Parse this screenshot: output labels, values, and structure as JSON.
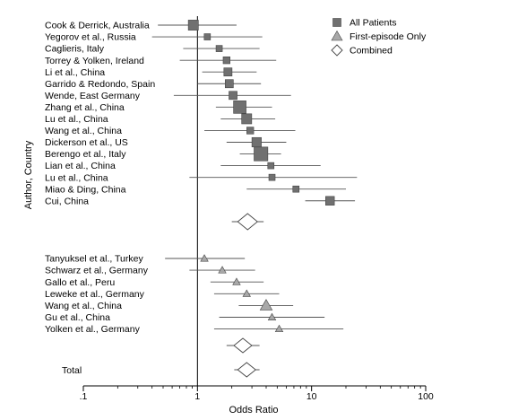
{
  "chart_data": {
    "type": "forest",
    "xlabel": "Odds Ratio",
    "ylabel": "Author, Country",
    "x_scale": "log",
    "xlim": [
      0.1,
      100
    ],
    "x_ticks": [
      ".1",
      "1",
      "10",
      "100"
    ],
    "reference_line": 1,
    "grid": false,
    "legend_position": "top-right",
    "legend": [
      {
        "name": "All Patients",
        "marker": "square"
      },
      {
        "name": "First-episode Only",
        "marker": "triangle"
      },
      {
        "name": "Combined",
        "marker": "diamond"
      }
    ],
    "colors": {
      "all_patients": "#707070",
      "first_episode": "#a8a8a8",
      "combined": "#ffffff",
      "outline": "#444444",
      "line": "#555555",
      "axis": "#000000"
    },
    "all_patients": [
      {
        "study": "Cook & Derrick, Australia",
        "or": 0.92,
        "ci": [
          0.45,
          2.2
        ],
        "weight": 1.6
      },
      {
        "study": "Yegorov et al., Russia",
        "or": 1.22,
        "ci": [
          0.4,
          3.7
        ],
        "weight": 1.0
      },
      {
        "study": "Caglieris, Italy",
        "or": 1.55,
        "ci": [
          0.75,
          3.5
        ],
        "weight": 1.0
      },
      {
        "study": "Torrey & Yolken, Ireland",
        "or": 1.8,
        "ci": [
          0.7,
          4.9
        ],
        "weight": 1.1
      },
      {
        "study": "Li et al., China",
        "or": 1.85,
        "ci": [
          1.1,
          3.3
        ],
        "weight": 1.3
      },
      {
        "study": "Garrido & Redondo, Spain",
        "or": 1.9,
        "ci": [
          1.0,
          3.6
        ],
        "weight": 1.3
      },
      {
        "study": "Wende, East Germany",
        "or": 2.05,
        "ci": [
          0.62,
          6.6
        ],
        "weight": 1.3
      },
      {
        "study": "Zhang et al., China",
        "or": 2.35,
        "ci": [
          1.45,
          4.5
        ],
        "weight": 2.0
      },
      {
        "study": "Lu et al., China",
        "or": 2.7,
        "ci": [
          1.6,
          4.8
        ],
        "weight": 1.6
      },
      {
        "study": "Wang et al., China",
        "or": 2.9,
        "ci": [
          1.15,
          7.2
        ],
        "weight": 1.1
      },
      {
        "study": "Dickerson et al., US",
        "or": 3.3,
        "ci": [
          1.8,
          6.0
        ],
        "weight": 1.5
      },
      {
        "study": "Berengo et al., Italy",
        "or": 3.6,
        "ci": [
          2.35,
          5.4
        ],
        "weight": 2.2
      },
      {
        "study": "Lian et al., China",
        "or": 4.4,
        "ci": [
          1.6,
          12.0
        ],
        "weight": 1.0
      },
      {
        "study": "Lu et al., China",
        "or": 4.5,
        "ci": [
          0.85,
          25
        ],
        "weight": 1.0
      },
      {
        "study": "Miao & Ding, China",
        "or": 7.3,
        "ci": [
          2.7,
          20
        ],
        "weight": 1.0
      },
      {
        "study": "Cui, China",
        "or": 14.5,
        "ci": [
          8.8,
          24
        ],
        "weight": 1.4
      }
    ],
    "all_patients_summary": {
      "or": 2.75,
      "ci": [
        2.0,
        3.8
      ]
    },
    "first_episode": [
      {
        "study": "Tanyuksel et al., Turkey",
        "or": 1.15,
        "ci": [
          0.52,
          2.6
        ],
        "weight": 1.0
      },
      {
        "study": "Schwarz et al., Germany",
        "or": 1.65,
        "ci": [
          0.85,
          3.2
        ],
        "weight": 1.0
      },
      {
        "study": "Gallo et al., Peru",
        "or": 2.2,
        "ci": [
          1.3,
          3.8
        ],
        "weight": 1.0
      },
      {
        "study": "Leweke et al., Germany",
        "or": 2.7,
        "ci": [
          1.4,
          5.2
        ],
        "weight": 1.0
      },
      {
        "study": "Wang et al., China",
        "or": 4.0,
        "ci": [
          2.3,
          6.9
        ],
        "weight": 1.6
      },
      {
        "study": "Gu et al., China",
        "or": 4.5,
        "ci": [
          1.55,
          13
        ],
        "weight": 1.0
      },
      {
        "study": "Yolken et al., Germany",
        "or": 5.2,
        "ci": [
          1.4,
          19
        ],
        "weight": 1.0
      }
    ],
    "first_episode_summary": {
      "or": 2.5,
      "ci": [
        1.8,
        3.5
      ]
    },
    "total_label": "Total",
    "total": {
      "or": 2.7,
      "ci": [
        2.1,
        3.5
      ]
    }
  }
}
